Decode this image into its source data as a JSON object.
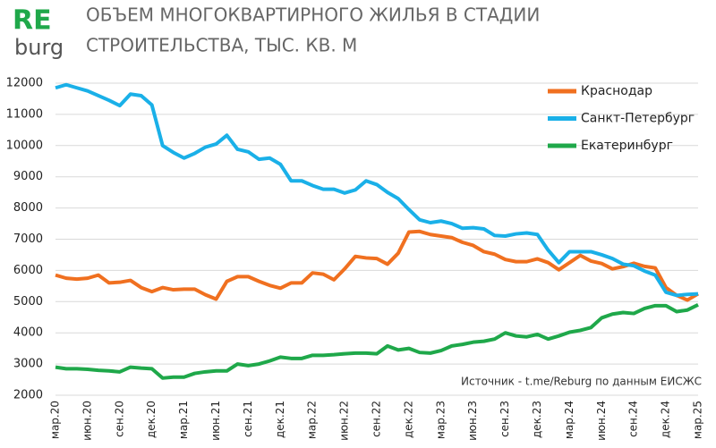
{
  "logo": {
    "top": "RE",
    "bottom": "burg"
  },
  "chart_data": {
    "type": "line",
    "title": [
      "ОБЪЕМ МНОГОКВАРТИРНОГО ЖИЛЬЯ В СТАДИИ",
      "СТРОИТЕЛЬСТВА, ТЫС. КВ. М"
    ],
    "annotation": "Источник - t.me/Reburg по данным ЕИСЖС",
    "categories": [
      "мар.20",
      null,
      null,
      "июн.20",
      null,
      null,
      "сен.20",
      null,
      null,
      "дек.20",
      null,
      null,
      "мар.21",
      null,
      null,
      "июн.21",
      null,
      null,
      "сен.21",
      null,
      null,
      "дек.21",
      null,
      null,
      "мар.22",
      null,
      null,
      "июн.22",
      null,
      null,
      "сен.22",
      null,
      null,
      "дек.22",
      null,
      null,
      "мар.23",
      null,
      null,
      "июн.23",
      null,
      null,
      "сен.23",
      null,
      null,
      "дек.23",
      null,
      null,
      "мар.24",
      null,
      null,
      "июн.24",
      null,
      null,
      "сен.24",
      null,
      null,
      "дек.24",
      null,
      null,
      "мар.25"
    ],
    "series": [
      {
        "name": "Краснодар",
        "color": "#f07020",
        "values": [
          5850,
          5750,
          5720,
          5750,
          5850,
          5600,
          5620,
          5680,
          5450,
          5320,
          5450,
          5380,
          5400,
          5400,
          5220,
          5080,
          5650,
          5800,
          5800,
          5650,
          5520,
          5430,
          5600,
          5600,
          5920,
          5880,
          5700,
          6050,
          6450,
          6400,
          6380,
          6200,
          6550,
          7230,
          7250,
          7150,
          7100,
          7050,
          6900,
          6800,
          6600,
          6520,
          6350,
          6280,
          6280,
          6370,
          6250,
          6020,
          6250,
          6480,
          6300,
          6220,
          6050,
          6120,
          6230,
          6130,
          6080,
          5450,
          5200,
          5050,
          5250
        ]
      },
      {
        "name": "Санкт-Петербург",
        "color": "#1ab0e8",
        "values": [
          11850,
          11950,
          11850,
          11750,
          11600,
          11450,
          11280,
          11650,
          11600,
          11300,
          10000,
          9780,
          9600,
          9750,
          9950,
          10050,
          10330,
          9880,
          9800,
          9560,
          9600,
          9400,
          8870,
          8870,
          8720,
          8600,
          8600,
          8480,
          8580,
          8870,
          8750,
          8500,
          8300,
          7950,
          7620,
          7530,
          7580,
          7500,
          7350,
          7370,
          7330,
          7120,
          7100,
          7170,
          7200,
          7150,
          6650,
          6250,
          6600,
          6600,
          6600,
          6500,
          6380,
          6200,
          6150,
          5980,
          5850,
          5300,
          5200,
          5230,
          5250
        ]
      },
      {
        "name": "Екатеринбург",
        "color": "#1fa84a",
        "values": [
          2900,
          2850,
          2850,
          2830,
          2800,
          2780,
          2750,
          2900,
          2870,
          2850,
          2550,
          2580,
          2580,
          2700,
          2750,
          2780,
          2780,
          3000,
          2950,
          3000,
          3100,
          3220,
          3180,
          3180,
          3280,
          3280,
          3300,
          3330,
          3350,
          3350,
          3330,
          3580,
          3450,
          3500,
          3370,
          3350,
          3430,
          3580,
          3630,
          3700,
          3730,
          3800,
          4000,
          3900,
          3870,
          3950,
          3800,
          3900,
          4020,
          4080,
          4170,
          4480,
          4600,
          4650,
          4620,
          4780,
          4870,
          4870,
          4680,
          4730,
          4900
        ]
      }
    ],
    "ylim": [
      2000,
      12000
    ],
    "yticks": [
      2000,
      3000,
      4000,
      5000,
      6000,
      7000,
      8000,
      9000,
      10000,
      11000,
      12000
    ],
    "grid": true,
    "legend": "top-right"
  }
}
